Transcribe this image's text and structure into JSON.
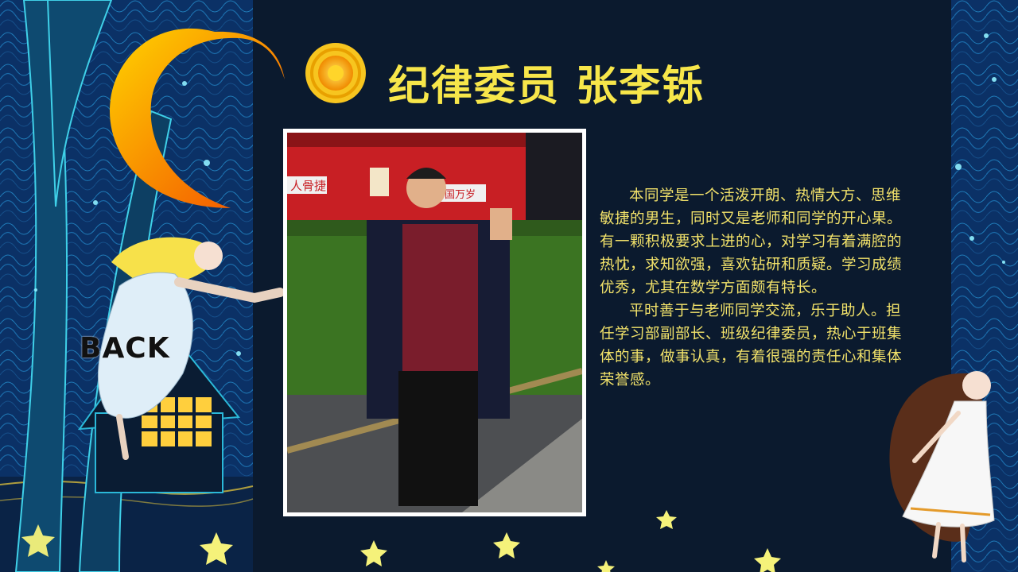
{
  "page": {
    "title": "纪律委员 张李铄",
    "back_label": "BACK"
  },
  "bio": {
    "paragraphs": [
      "本同学是一个活泼开朗、热情大方、思维敏捷的男生，同时又是老师和同学的开心果。有一颗积极要求上进的心，对学习有着满腔的热忱，求知欲强，喜欢钻研和质疑。学习成绩优秀，尤其在数学方面颇有特长。",
      "平时善于与老师同学交流，乐于助人。担任学习部副部长、班级纪律委员，热心于班集体的事，做事认真，有着很强的责任心和集体荣誉感。"
    ]
  },
  "photo": {
    "sign_left": "人骨捷",
    "sign_right": "共和国万岁"
  },
  "colors": {
    "title": "#f7e64a",
    "bio_text": "#f2e26a",
    "panel_bg": "#0b1a2e",
    "night_bg": "#0a2a52"
  },
  "icons": [
    "moon-icon",
    "sun-icon",
    "star-icon",
    "fairy-girl-illustration",
    "long-hair-girl-illustration",
    "house-illustration",
    "tree-illustration"
  ]
}
